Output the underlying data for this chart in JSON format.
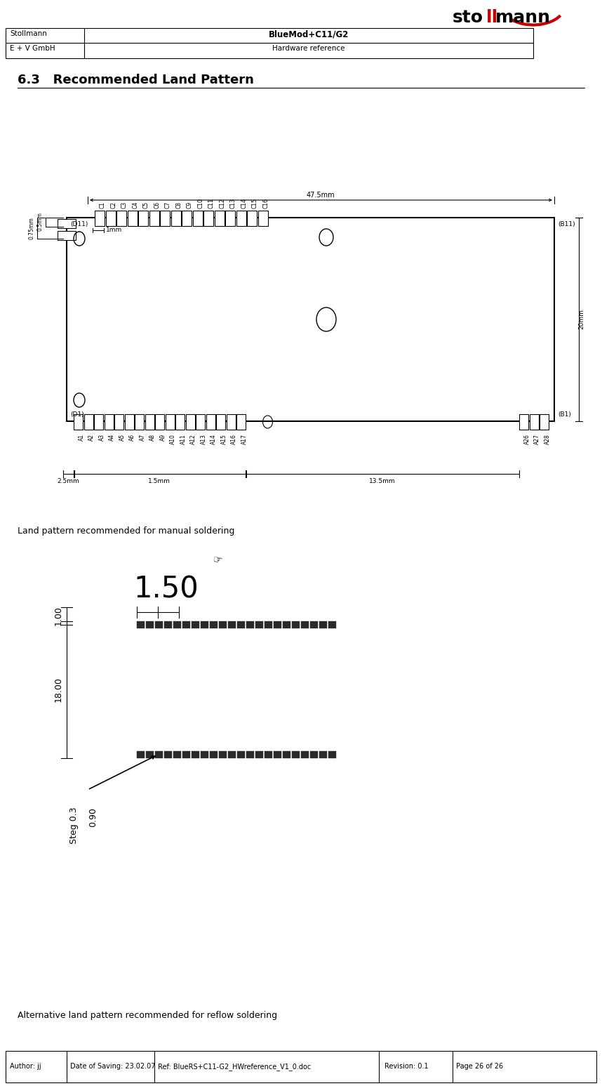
{
  "page_width": 8.58,
  "page_height": 15.47,
  "bg_color": "#ffffff",
  "header": {
    "col1_top": "Stollmann",
    "col1_bottom": "E + V GmbH",
    "col2_top": "BlueMod+C11/G2",
    "col2_bottom": "Hardware reference"
  },
  "footer": {
    "author": "Author: jj",
    "date": "Date of Saving: 23.02.07",
    "ref": "Ref: BlueRS+C11-G2_HWreference_V1_0.doc",
    "revision": "Revision: 0.1",
    "page": "Page 26 of 26"
  },
  "section_title": "6.3   Recommended Land Pattern",
  "caption1": "Land pattern recommended for manual soldering",
  "caption2": "Alternative land pattern recommended for reflow soldering",
  "top_labels_C": [
    "C1",
    "C2",
    "C3",
    "C4",
    "C5",
    "C6",
    "C7",
    "C8",
    "C9",
    "C10",
    "C11",
    "C12",
    "C13",
    "C14",
    "C15",
    "C16"
  ],
  "bottom_labels_A": [
    "A1",
    "A2",
    "A3",
    "A4",
    "A5",
    "A6",
    "A7",
    "A8",
    "A9",
    "A10",
    "A11",
    "A12",
    "A13",
    "A14",
    "A15",
    "A16",
    "A17"
  ],
  "bottom_labels_A2": [
    "A26",
    "A27",
    "A28"
  ],
  "dim_47_5": "47.5mm",
  "dim_1mm": "1mm",
  "dim_075": "0.75mm",
  "dim_05": "0.5mm",
  "dim_20": "20mm",
  "dim_25": "2.5mm",
  "dim_15": "1.5mm",
  "dim_135": "13.5mm",
  "label_D11": "(D11)",
  "label_D1": "(D1)",
  "label_B11": "(B11)",
  "label_B1": "(B1)",
  "manual_title_150": "1.50",
  "manual_dim1": "1.00",
  "manual_dim2": "18.00",
  "manual_steg": "Steg 0.3",
  "manual_dim3": "0.90"
}
